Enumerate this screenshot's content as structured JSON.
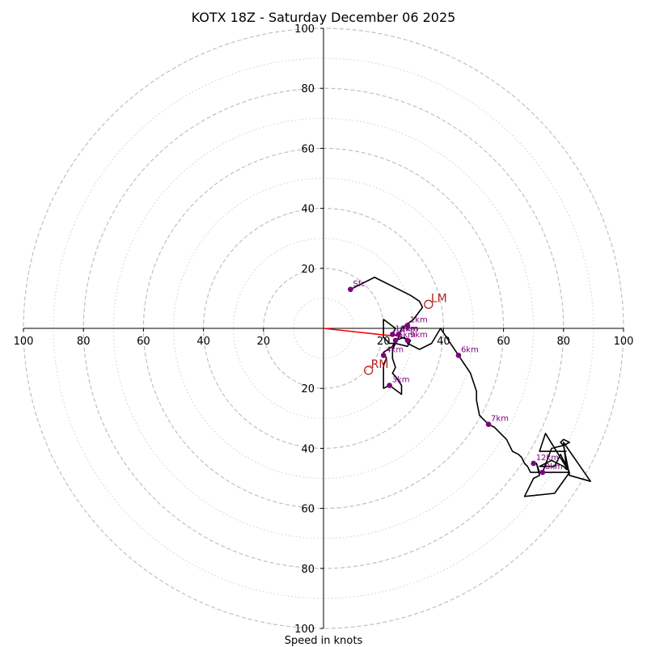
{
  "chart_data": {
    "type": "scatter",
    "title": "KOTX 18Z - Saturday December 06 2025",
    "xlabel": "Speed in knots",
    "ylabel": "",
    "xlim": [
      -100,
      100
    ],
    "ylim": [
      -100,
      100
    ],
    "ring_major": [
      20,
      40,
      60,
      80,
      100
    ],
    "ring_minor": [
      10,
      30,
      50,
      70,
      90
    ],
    "tick_labels": {
      "left": [
        "100",
        "80",
        "60",
        "40",
        "20"
      ],
      "right": [
        "20",
        "40",
        "60",
        "80",
        "100"
      ],
      "top": [
        "20",
        "40",
        "60",
        "80",
        "100"
      ],
      "bottom": [
        "20",
        "40",
        "60",
        "80",
        "100"
      ]
    },
    "hodograph_trace": [
      [
        9,
        13
      ],
      [
        17,
        17
      ],
      [
        29,
        11
      ],
      [
        32,
        9
      ],
      [
        33,
        7
      ],
      [
        30,
        3
      ],
      [
        26,
        0
      ],
      [
        25,
        -3
      ],
      [
        24,
        -5
      ],
      [
        22,
        -5
      ],
      [
        20,
        -3
      ],
      [
        20,
        3
      ],
      [
        24,
        0
      ],
      [
        23,
        -2
      ],
      [
        26,
        -3
      ],
      [
        29,
        -4
      ],
      [
        28,
        -6
      ],
      [
        24,
        -5
      ],
      [
        23,
        -7
      ],
      [
        23,
        -10
      ],
      [
        24,
        -13
      ],
      [
        23,
        -15
      ],
      [
        24,
        -16
      ],
      [
        26,
        -19
      ],
      [
        26,
        -22
      ],
      [
        22,
        -19
      ],
      [
        20,
        -20
      ],
      [
        20,
        -18
      ],
      [
        20,
        -12
      ],
      [
        21,
        -10
      ],
      [
        20,
        -8
      ],
      [
        23,
        -6
      ],
      [
        24,
        -4
      ],
      [
        27,
        -3
      ],
      [
        28,
        -5
      ],
      [
        32,
        -7
      ],
      [
        36,
        -5
      ],
      [
        39,
        0
      ],
      [
        41,
        -3
      ],
      [
        43,
        -6
      ],
      [
        45,
        -9
      ],
      [
        47,
        -12
      ],
      [
        49,
        -15
      ],
      [
        50,
        -18
      ],
      [
        51,
        -21
      ],
      [
        51,
        -24
      ],
      [
        52,
        -29
      ],
      [
        55,
        -32
      ],
      [
        57,
        -33
      ],
      [
        59,
        -35
      ],
      [
        61,
        -37
      ],
      [
        62,
        -39
      ],
      [
        63,
        -41
      ],
      [
        65,
        -42
      ],
      [
        66,
        -43
      ],
      [
        67,
        -45
      ],
      [
        68,
        -46
      ],
      [
        69,
        -48
      ],
      [
        73,
        -48
      ],
      [
        76,
        -40
      ],
      [
        80,
        -39
      ],
      [
        79,
        -38
      ],
      [
        80,
        -37
      ],
      [
        82,
        -38
      ],
      [
        80,
        -39
      ],
      [
        82,
        -49
      ],
      [
        89,
        -51
      ],
      [
        80,
        -38
      ],
      [
        81,
        -47
      ],
      [
        80,
        -46
      ],
      [
        76,
        -44
      ],
      [
        72,
        -46
      ],
      [
        77,
        -46
      ],
      [
        79,
        -42
      ],
      [
        82,
        -48
      ],
      [
        72,
        -48
      ],
      [
        71,
        -45
      ],
      [
        72,
        -49
      ],
      [
        70,
        -50
      ],
      [
        67,
        -56
      ],
      [
        77,
        -55
      ],
      [
        82,
        -48
      ],
      [
        74,
        -35
      ],
      [
        72,
        -41
      ],
      [
        76,
        -41
      ],
      [
        81,
        -41
      ]
    ],
    "height_points": [
      {
        "label": "Sfc",
        "x": 9,
        "y": 13
      },
      {
        "label": "1km",
        "x": 28,
        "y": 1
      },
      {
        "label": "2km",
        "x": 25,
        "y": -2
      },
      {
        "label": "3km",
        "x": 22,
        "y": -19
      },
      {
        "label": "4km",
        "x": 20,
        "y": -9
      },
      {
        "label": "5km",
        "x": 24,
        "y": -4
      },
      {
        "label": "6km",
        "x": 45,
        "y": -9
      },
      {
        "label": "7km",
        "x": 55,
        "y": -32
      },
      {
        "label": "8km",
        "x": 73,
        "y": -48
      },
      {
        "label": "9km",
        "x": 28,
        "y": -4
      },
      {
        "label": "10km",
        "x": 23,
        "y": -2
      },
      {
        "label": "12km",
        "x": 70,
        "y": -45
      }
    ],
    "storm_motions": [
      {
        "label": "LM",
        "x": 35,
        "y": 8
      },
      {
        "label": "RM",
        "x": 15,
        "y": -14
      }
    ],
    "shear_vector": {
      "from": [
        0,
        0
      ],
      "to": [
        23,
        -2.5
      ]
    },
    "colors": {
      "trace": "#000000",
      "points": "#800080",
      "storm_motion": "#b22222",
      "shear": "#ff0000",
      "grid": "#bbbbbb"
    }
  }
}
